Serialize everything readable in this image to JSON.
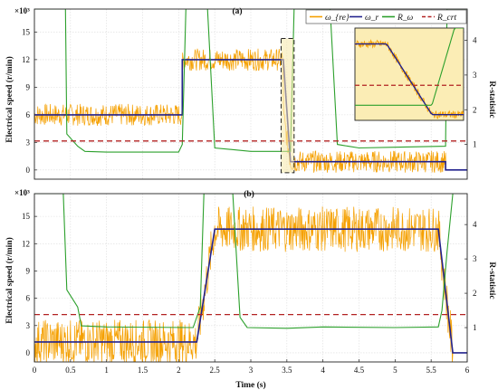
{
  "figure": {
    "panel_a_label": "(a)",
    "panel_b_label": "(b)",
    "scale_a": "×10³",
    "scale_b": "×10³",
    "ylabel_left": "Electrical speed (r/min)",
    "ylabel_right": "R-statistic",
    "xlabel": "Time (s)"
  },
  "legend": [
    {
      "label": "ω_{re}",
      "color": "#f5a000",
      "style": "solid"
    },
    {
      "label": "ω_r",
      "color": "#23238e",
      "style": "solid"
    },
    {
      "label": "R_ω",
      "color": "#2ca02c",
      "style": "solid"
    },
    {
      "label": "R_crt",
      "color": "#b22222",
      "style": "dashed"
    }
  ],
  "chart_data": [
    {
      "type": "line",
      "title": "(a)",
      "xlabel": "",
      "ylabel": "Electrical speed (r/min)",
      "y2label": "R-statistic",
      "xlim": [
        0,
        6
      ],
      "ylim": [
        -1000,
        17500
      ],
      "y2lim": [
        0,
        4.9
      ],
      "yticks": [
        "0",
        "3",
        "6",
        "9",
        "12",
        "15"
      ],
      "y_scale_note": "×10³",
      "y2ticks": [
        "1",
        "2",
        "3",
        "4"
      ],
      "grid": true,
      "legend_position": "top-right",
      "series": [
        {
          "name": "ω_{re}",
          "axis": "left",
          "noise_band": 1200,
          "x": [
            0,
            2.05,
            2.05,
            3.45,
            3.45,
            3.55,
            3.55,
            5.7,
            5.7,
            6
          ],
          "y": [
            6000,
            6000,
            12000,
            12000,
            6000,
            900,
            900,
            900,
            0,
            0
          ]
        },
        {
          "name": "ω_r",
          "axis": "left",
          "x": [
            0,
            2.05,
            2.05,
            3.45,
            3.55,
            5.7,
            5.7,
            6
          ],
          "y": [
            6000,
            6000,
            12000,
            12000,
            900,
            900,
            0,
            0
          ]
        },
        {
          "name": "R_ω",
          "axis": "right",
          "x": [
            0,
            0.43,
            0.45,
            0.6,
            0.7,
            1.0,
            2.0,
            2.05,
            2.1,
            2.4,
            2.5,
            3.0,
            3.55,
            3.6,
            3.62,
            4.1,
            4.2,
            4.35,
            4.5,
            5.0,
            5.7,
            5.72,
            5.8,
            6
          ],
          "y": [
            4.9,
            4.9,
            1.3,
            0.95,
            0.8,
            0.78,
            0.78,
            1.0,
            4.9,
            4.9,
            0.9,
            0.8,
            0.8,
            4.9,
            4.9,
            4.9,
            1.0,
            0.95,
            0.9,
            0.92,
            0.95,
            4.9,
            4.9,
            4.9
          ]
        },
        {
          "name": "R_crt",
          "axis": "right",
          "x": [
            0,
            6
          ],
          "y": [
            1.1,
            1.1
          ]
        }
      ],
      "inset": {
        "xlim": [
          3.38,
          3.62
        ],
        "ylim": [
          0,
          14500
        ]
      }
    },
    {
      "type": "line",
      "title": "(b)",
      "xlabel": "Time (s)",
      "ylabel": "Electrical speed (r/min)",
      "y2label": "R-statistic",
      "xlim": [
        0,
        6
      ],
      "ylim": [
        -1000,
        17500
      ],
      "y2lim": [
        0,
        4.9
      ],
      "xticks": [
        "0",
        "0.5",
        "1",
        "1.5",
        "2",
        "2.5",
        "3",
        "3.5",
        "4",
        "4.5",
        "5",
        "5.5",
        "6"
      ],
      "yticks": [
        "0",
        "3",
        "6",
        "9",
        "12",
        "15"
      ],
      "y_scale_note": "×10³",
      "y2ticks": [
        "1",
        "2",
        "3",
        "4"
      ],
      "grid": true,
      "series": [
        {
          "name": "ω_{re}",
          "axis": "left",
          "noise_band": 2500,
          "x": [
            0,
            2.25,
            2.5,
            5.6,
            5.8,
            6
          ],
          "y": [
            1200,
            1200,
            13600,
            13600,
            0,
            0
          ]
        },
        {
          "name": "ω_r",
          "axis": "left",
          "x": [
            0,
            2.25,
            2.5,
            5.6,
            5.8,
            6
          ],
          "y": [
            1200,
            1200,
            13600,
            13600,
            0,
            0
          ]
        },
        {
          "name": "R_ω",
          "axis": "right",
          "x": [
            0,
            0.4,
            0.45,
            0.6,
            0.65,
            1.0,
            2.2,
            2.3,
            2.35,
            2.75,
            2.85,
            2.95,
            3.5,
            4.0,
            5.0,
            5.6,
            5.65,
            5.72,
            5.8
          ],
          "y": [
            4.9,
            4.9,
            2.1,
            1.6,
            1.05,
            1.02,
            1.0,
            1.6,
            4.9,
            4.9,
            1.3,
            1.0,
            0.98,
            1.02,
            1.0,
            1.02,
            1.5,
            3.2,
            4.9
          ]
        },
        {
          "name": "R_crt",
          "axis": "right",
          "x": [
            0,
            6
          ],
          "y": [
            1.38,
            1.38
          ]
        }
      ]
    }
  ]
}
